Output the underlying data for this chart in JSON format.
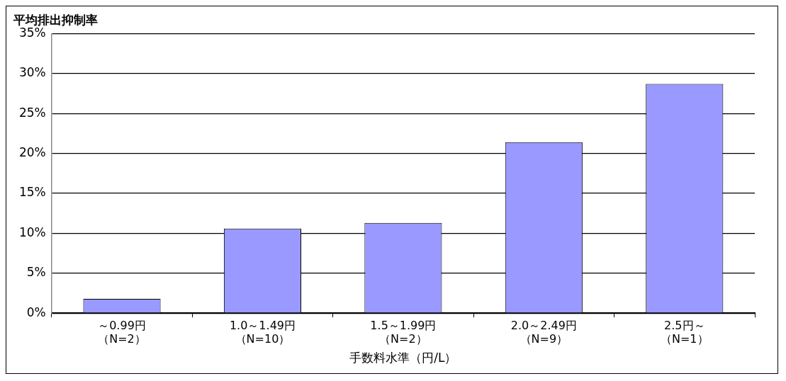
{
  "chart_data": {
    "type": "bar",
    "ylabel": "平均排出抑制率",
    "xlabel": "手数料水準（円/L）",
    "categories": [
      "～0.99円（N=2）",
      "1.0～1.49円（N=10）",
      "1.5～1.99円（N=2）",
      "2.0～2.49円（N=9）",
      "2.5円～（N=1）"
    ],
    "values": [
      1.8,
      10.6,
      11.3,
      21.4,
      28.7
    ],
    "color": "#9999ff",
    "ylim": [
      0,
      35
    ],
    "yticks": [
      {
        "value": 0,
        "label": "0%"
      },
      {
        "value": 5,
        "label": "5%"
      },
      {
        "value": 10,
        "label": "10%"
      },
      {
        "value": 15,
        "label": "15%"
      },
      {
        "value": 20,
        "label": "20%"
      },
      {
        "value": 25,
        "label": "25%"
      },
      {
        "value": 30,
        "label": "30%"
      },
      {
        "value": 35,
        "label": "35%"
      }
    ],
    "grid": "y",
    "legend": false
  }
}
